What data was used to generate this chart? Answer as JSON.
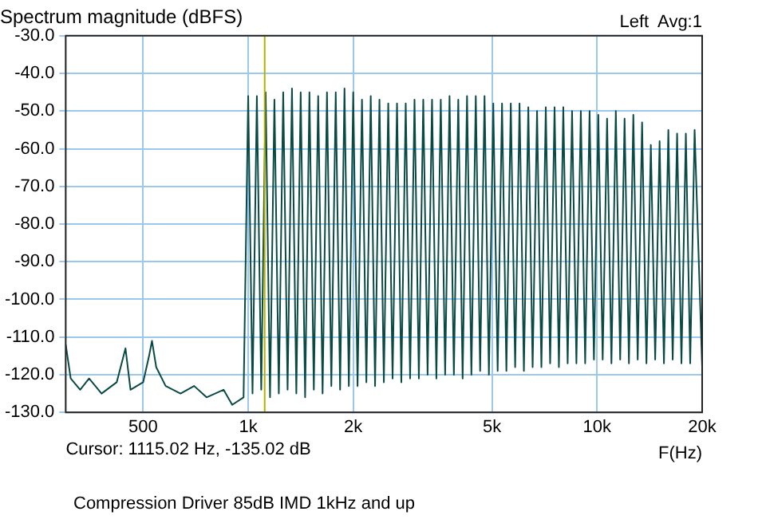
{
  "chart_data": {
    "type": "line",
    "title": "Spectrum magnitude (dBFS)",
    "xlabel": "F(Hz)",
    "annotations": [
      "Left  Avg:1",
      "Cursor: 1115.02 Hz, -135.02 dB",
      "Compression Driver 85dB IMD 1kHz and up"
    ],
    "log": "x",
    "grid": true,
    "xlim": [
      300,
      20000
    ],
    "xticks": [
      500,
      {
        "value": 1000,
        "label": "1k"
      },
      {
        "value": 2000,
        "label": "2k"
      },
      {
        "value": 5000,
        "label": "5k"
      },
      {
        "value": 10000,
        "label": "10k"
      },
      {
        "value": 20000,
        "label": "20k"
      }
    ],
    "ylim": [
      -130,
      -30
    ],
    "yticks": [
      {
        "value": -130,
        "label": "-130.0"
      },
      {
        "value": -120,
        "label": "-120.0"
      },
      {
        "value": -110,
        "label": "-110.0"
      },
      {
        "value": -100,
        "label": "-100.0"
      },
      {
        "value": -90,
        "label": "-90.0"
      },
      {
        "value": -80,
        "label": "-80.0"
      },
      {
        "value": -70,
        "label": "-70.0"
      },
      {
        "value": -60,
        "label": "-60.0"
      },
      {
        "value": -50,
        "label": "-50.0"
      },
      {
        "value": -40,
        "label": "-40.0"
      },
      {
        "value": -30,
        "label": "-30.0"
      }
    ],
    "ref_lines": [
      {
        "axis": "x",
        "value": 1115.02,
        "color": "#b5b000"
      }
    ],
    "series": [
      {
        "color": "#0a4a45",
        "x": [
          300,
          310,
          330,
          350,
          380,
          420,
          445,
          460,
          500,
          520,
          530,
          545,
          580,
          640,
          700,
          760,
          850,
          900,
          970,
          1000,
          1029,
          1059,
          1090,
          1122,
          1155,
          1189,
          1224,
          1260,
          1297,
          1335,
          1374,
          1414,
          1456,
          1498,
          1542,
          1587,
          1634,
          1682,
          1731,
          1782,
          1834,
          1888,
          1943,
          2000,
          2058,
          2119,
          2181,
          2245,
          2310,
          2378,
          2448,
          2520,
          2593,
          2670,
          2747,
          2828,
          2911,
          2997,
          3084,
          3175,
          3267,
          3364,
          3462,
          3564,
          3668,
          3776,
          3886,
          4000,
          4117,
          4238,
          4362,
          4490,
          4621,
          4757,
          4896,
          5040,
          5187,
          5339,
          5495,
          5657,
          5822,
          5993,
          6168,
          6350,
          6534,
          6727,
          6923,
          7127,
          7334,
          7551,
          7771,
          8000,
          8233,
          8476,
          8722,
          8980,
          9241,
          9514,
          9791,
          10079,
          10373,
          10679,
          10990,
          11314,
          11643,
          11986,
          12335,
          12699,
          13069,
          13454,
          13846,
          14254,
          14669,
          15102,
          15541,
          16000,
          16465,
          16951,
          17444,
          17959,
          18481,
          19027,
          20000
        ],
        "values": [
          -112,
          -121,
          -124,
          -121,
          -125,
          -122,
          -113,
          -124,
          -122,
          -115,
          -111,
          -118,
          -123,
          -125,
          -123,
          -126,
          -124,
          -128,
          -126,
          -46,
          -125,
          -46,
          -124,
          -45,
          -126,
          -47,
          -125,
          -45,
          -124,
          -44,
          -125,
          -45,
          -126,
          -45,
          -124,
          -46,
          -125,
          -45,
          -123,
          -45,
          -124,
          -44,
          -123,
          -45,
          -123,
          -47,
          -122,
          -46,
          -123,
          -47,
          -122,
          -48,
          -121,
          -48,
          -122,
          -48,
          -121,
          -47,
          -121,
          -47,
          -120,
          -47,
          -121,
          -47,
          -120,
          -46,
          -120,
          -47,
          -121,
          -46,
          -120,
          -46,
          -119,
          -46,
          -120,
          -48,
          -119,
          -48,
          -119,
          -48,
          -118,
          -48,
          -119,
          -49,
          -118,
          -50,
          -118,
          -49,
          -117,
          -49,
          -118,
          -49,
          -117,
          -50,
          -117,
          -50,
          -117,
          -50,
          -116,
          -51,
          -116,
          -52,
          -117,
          -50,
          -116,
          -52,
          -117,
          -51,
          -116,
          -53,
          -117,
          -59,
          -116,
          -58,
          -117,
          -55,
          -116,
          -56,
          -117,
          -56,
          -117,
          -55,
          -118
        ]
      }
    ]
  }
}
